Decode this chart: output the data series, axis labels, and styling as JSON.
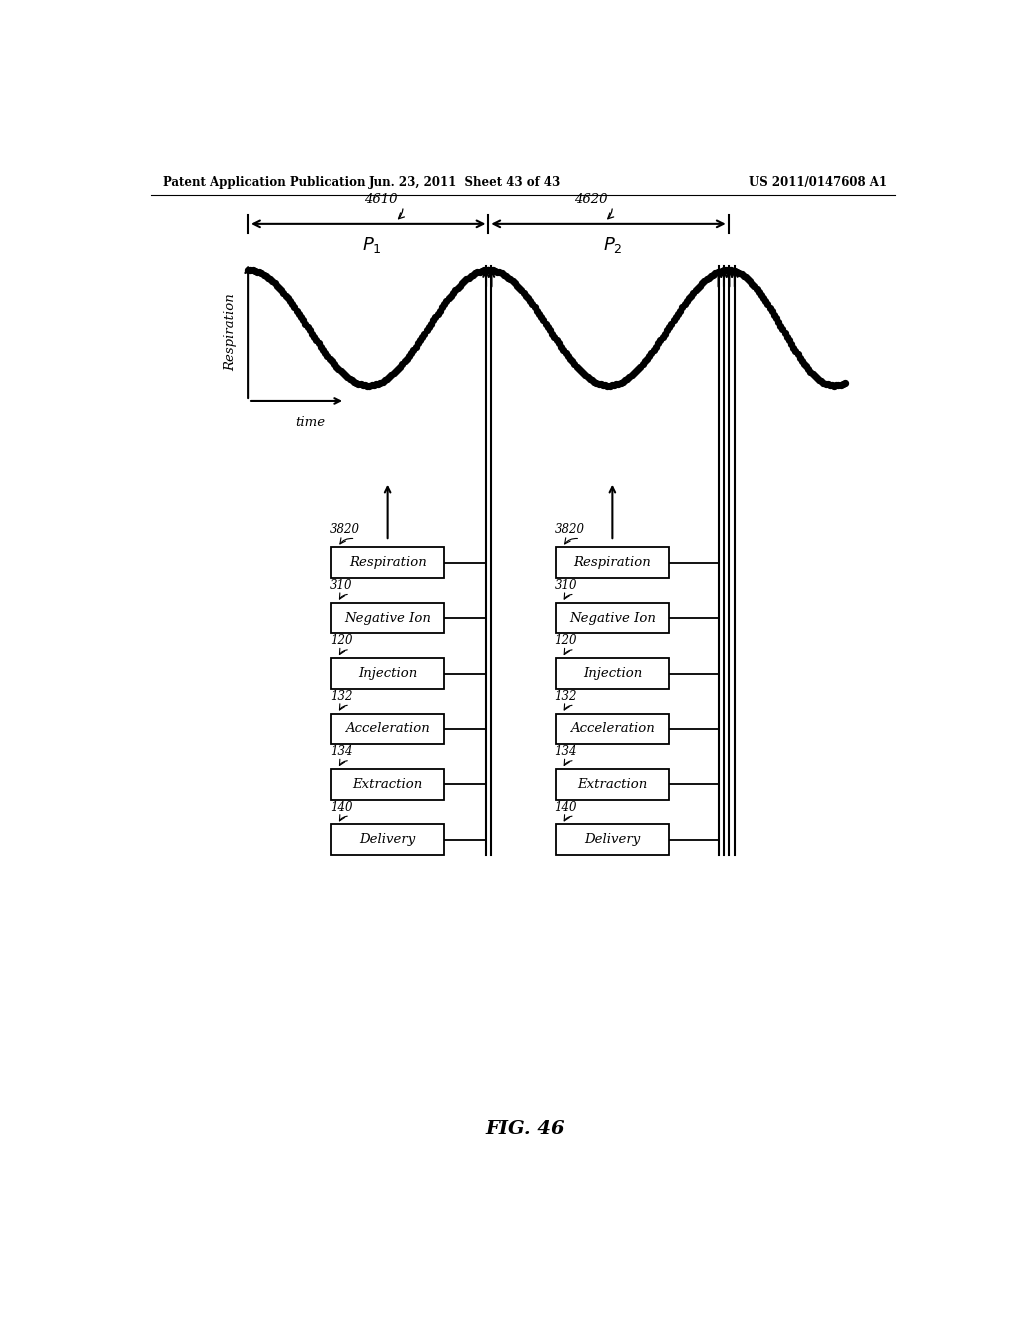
{
  "header_left": "Patent Application Publication",
  "header_mid": "Jun. 23, 2011  Sheet 43 of 43",
  "header_right": "US 2011/0147608 A1",
  "fig_label": "FIG. 46",
  "bg_color": "#ffffff",
  "box_labels": [
    "Respiration",
    "Negative Ion",
    "Injection",
    "Acceleration",
    "Extraction",
    "Delivery"
  ],
  "box_refs": [
    "3820",
    "310",
    "120",
    "132",
    "134",
    "140"
  ]
}
